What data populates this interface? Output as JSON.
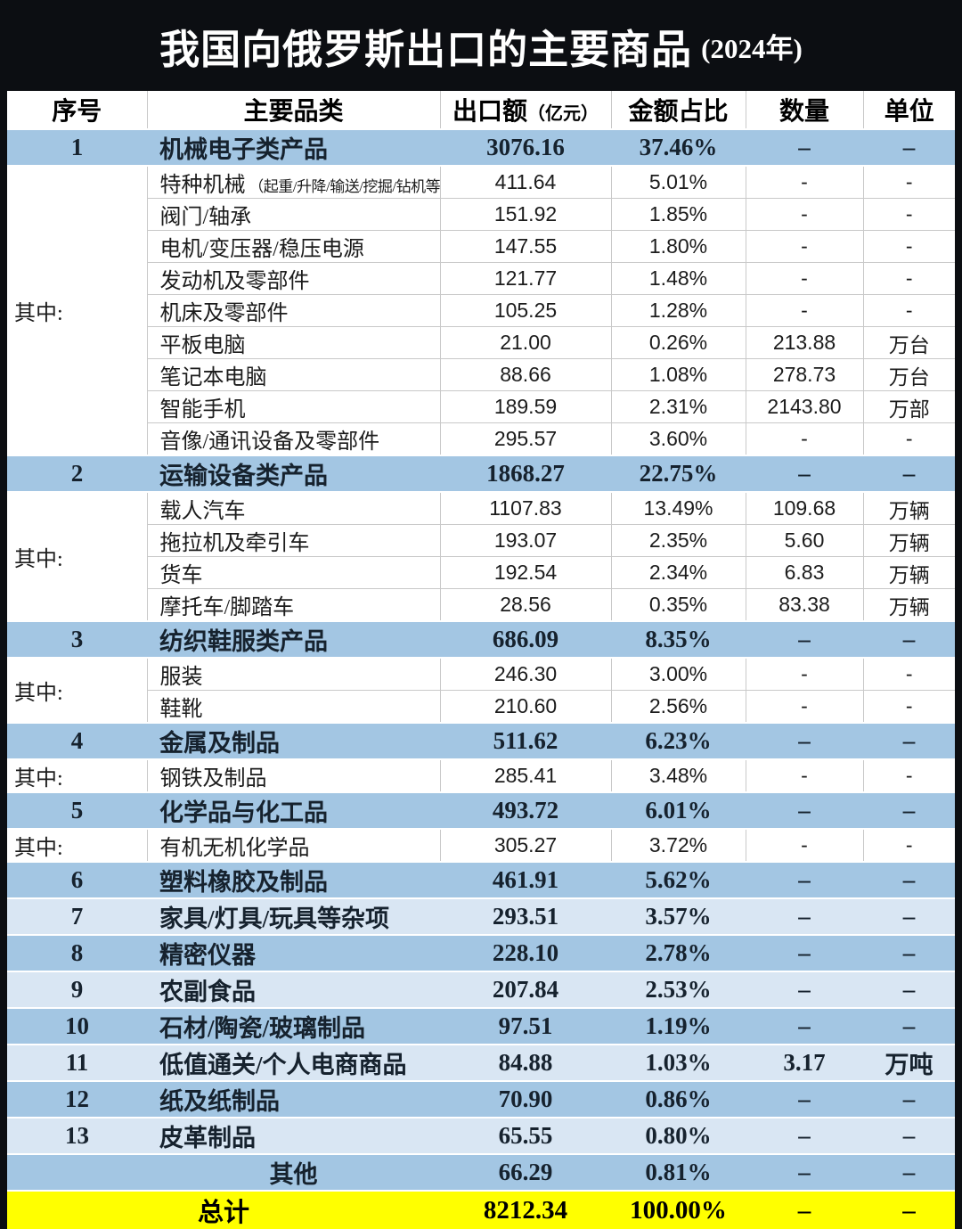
{
  "title": {
    "main": "我国向俄罗斯出口的主要商品",
    "year": "(2024年)"
  },
  "columns": {
    "no": "序号",
    "category": "主要品类",
    "value": "出口额",
    "value_unit": "（亿元）",
    "share": "金额占比",
    "qty": "数量",
    "unit": "单位"
  },
  "colors": {
    "main_row_blue": "#a3c6e3",
    "alt_row_blue": "#d9e6f3",
    "total_yellow": "#ffff00",
    "page_black": "#0c0e12"
  },
  "children_label": "其中:",
  "sections": [
    {
      "no": "1",
      "category": "机械电子类产品",
      "value": "3076.16",
      "share": "37.46%",
      "qty": "–",
      "unit": "–",
      "children": [
        {
          "category": "特种机械",
          "note": "（起重/升降/输送/挖掘/钻机等）",
          "value": "411.64",
          "share": "5.01%",
          "qty": "-",
          "unit": "-"
        },
        {
          "category": "阀门/轴承",
          "value": "151.92",
          "share": "1.85%",
          "qty": "-",
          "unit": "-"
        },
        {
          "category": "电机/变压器/稳压电源",
          "value": "147.55",
          "share": "1.80%",
          "qty": "-",
          "unit": "-"
        },
        {
          "category": "发动机及零部件",
          "value": "121.77",
          "share": "1.48%",
          "qty": "-",
          "unit": "-"
        },
        {
          "category": "机床及零部件",
          "value": "105.25",
          "share": "1.28%",
          "qty": "-",
          "unit": "-"
        },
        {
          "category": "平板电脑",
          "value": "21.00",
          "share": "0.26%",
          "qty": "213.88",
          "unit": "万台"
        },
        {
          "category": "笔记本电脑",
          "value": "88.66",
          "share": "1.08%",
          "qty": "278.73",
          "unit": "万台"
        },
        {
          "category": "智能手机",
          "value": "189.59",
          "share": "2.31%",
          "qty": "2143.80",
          "unit": "万部"
        },
        {
          "category": "音像/通讯设备及零部件",
          "value": "295.57",
          "share": "3.60%",
          "qty": "-",
          "unit": "-"
        }
      ]
    },
    {
      "no": "2",
      "category": "运输设备类产品",
      "value": "1868.27",
      "share": "22.75%",
      "qty": "–",
      "unit": "–",
      "children": [
        {
          "category": "载人汽车",
          "value": "1107.83",
          "share": "13.49%",
          "qty": "109.68",
          "unit": "万辆"
        },
        {
          "category": "拖拉机及牵引车",
          "value": "193.07",
          "share": "2.35%",
          "qty": "5.60",
          "unit": "万辆"
        },
        {
          "category": "货车",
          "value": "192.54",
          "share": "2.34%",
          "qty": "6.83",
          "unit": "万辆"
        },
        {
          "category": "摩托车/脚踏车",
          "value": "28.56",
          "share": "0.35%",
          "qty": "83.38",
          "unit": "万辆"
        }
      ]
    },
    {
      "no": "3",
      "category": "纺织鞋服类产品",
      "value": "686.09",
      "share": "8.35%",
      "qty": "–",
      "unit": "–",
      "children": [
        {
          "category": "服装",
          "value": "246.30",
          "share": "3.00%",
          "qty": "-",
          "unit": "-"
        },
        {
          "category": "鞋靴",
          "value": "210.60",
          "share": "2.56%",
          "qty": "-",
          "unit": "-"
        }
      ]
    },
    {
      "no": "4",
      "category": "金属及制品",
      "value": "511.62",
      "share": "6.23%",
      "qty": "–",
      "unit": "–",
      "children": [
        {
          "category": "钢铁及制品",
          "value": "285.41",
          "share": "3.48%",
          "qty": "-",
          "unit": "-"
        }
      ]
    },
    {
      "no": "5",
      "category": "化学品与化工品",
      "value": "493.72",
      "share": "6.01%",
      "qty": "–",
      "unit": "–",
      "children": [
        {
          "category": "有机无机化学品",
          "value": "305.27",
          "share": "3.72%",
          "qty": "-",
          "unit": "-"
        }
      ]
    },
    {
      "no": "6",
      "category": "塑料橡胶及制品",
      "value": "461.91",
      "share": "5.62%",
      "qty": "–",
      "unit": "–"
    },
    {
      "no": "7",
      "category": "家具/灯具/玩具等杂项",
      "value": "293.51",
      "share": "3.57%",
      "qty": "–",
      "unit": "–"
    },
    {
      "no": "8",
      "category": "精密仪器",
      "value": "228.10",
      "share": "2.78%",
      "qty": "–",
      "unit": "–"
    },
    {
      "no": "9",
      "category": "农副食品",
      "value": "207.84",
      "share": "2.53%",
      "qty": "–",
      "unit": "–"
    },
    {
      "no": "10",
      "category": "石材/陶瓷/玻璃制品",
      "value": "97.51",
      "share": "1.19%",
      "qty": "–",
      "unit": "–"
    },
    {
      "no": "11",
      "category": "低值通关/个人电商商品",
      "value": "84.88",
      "share": "1.03%",
      "qty": "3.17",
      "unit": "万吨"
    },
    {
      "no": "12",
      "category": "纸及纸制品",
      "value": "70.90",
      "share": "0.86%",
      "qty": "–",
      "unit": "–"
    },
    {
      "no": "13",
      "category": "皮革制品",
      "value": "65.55",
      "share": "0.80%",
      "qty": "–",
      "unit": "–"
    },
    {
      "no": "",
      "category": "其他",
      "value": "66.29",
      "share": "0.81%",
      "qty": "–",
      "unit": "–",
      "center_category": true
    }
  ],
  "total_row": {
    "label": "总计",
    "value": "8212.34",
    "share": "100.00%",
    "qty": "–",
    "unit": "–"
  }
}
